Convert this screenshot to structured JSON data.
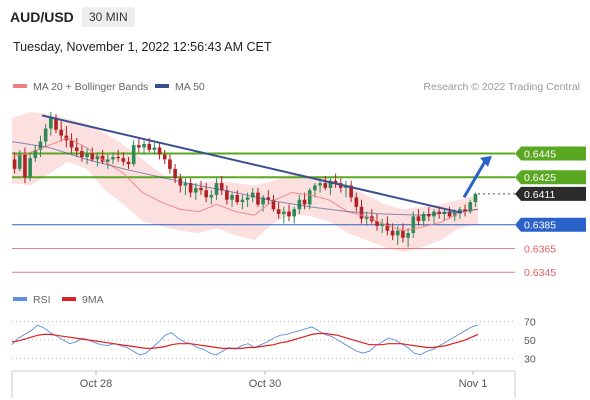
{
  "header": {
    "symbol": "AUD/USD",
    "timeframe": "30 MIN",
    "datetime": "Tuesday, November 1, 2022 12:56:43 AM CET"
  },
  "colors": {
    "candle_up": "#2e8b57",
    "candle_down": "#b22222",
    "bollinger_fill": "#fbd9d9",
    "ma20": "#f08080",
    "ma50": "#3a4f8f",
    "trendline": "#3a4f8f",
    "resistance": "#5aa822",
    "pivot": "#2a62c9",
    "support": "#e06060",
    "rsi": "#5b8de0",
    "rsi_ma": "#e02020",
    "arrow": "#2a62c9"
  },
  "chart_data": [
    {
      "type": "candlestick",
      "title": "",
      "legend": [
        {
          "name": "MA 20 + Bollinger Bands",
          "color": "#f08080"
        },
        {
          "name": "MA 50",
          "color": "#3a4f8f"
        }
      ],
      "legend_placement": "top-left",
      "copyright": "Research © 2022 Trading Central",
      "x_labels": [
        "Oct 28",
        "Oct 30",
        "Nov 1"
      ],
      "y_range": [
        0.633,
        0.649
      ],
      "levels": [
        {
          "value": 0.6445,
          "label": "0.6445",
          "kind": "resistance"
        },
        {
          "value": 0.6425,
          "label": "0.6425",
          "kind": "resistance"
        },
        {
          "value": 0.6411,
          "label": "0.6411",
          "kind": "last"
        },
        {
          "value": 0.6385,
          "label": "0.6385",
          "kind": "pivot"
        },
        {
          "value": 0.6365,
          "label": "0.6365",
          "kind": "support"
        },
        {
          "value": 0.6345,
          "label": "0.6345",
          "kind": "support"
        }
      ],
      "trendline": {
        "from": [
          0.0,
          0.6477
        ],
        "to": [
          0.965,
          0.6395
        ]
      },
      "projection_arrow": {
        "from": [
          0.97,
          0.6408
        ],
        "to": [
          1.03,
          0.6443
        ]
      },
      "ma50": [
        [
          0,
          0.6455
        ],
        [
          0.08,
          0.645
        ],
        [
          0.16,
          0.644
        ],
        [
          0.24,
          0.6432
        ],
        [
          0.32,
          0.6425
        ],
        [
          0.4,
          0.6418
        ],
        [
          0.48,
          0.6412
        ],
        [
          0.56,
          0.6405
        ],
        [
          0.64,
          0.64
        ],
        [
          0.72,
          0.6396
        ],
        [
          0.8,
          0.6394
        ],
        [
          0.88,
          0.6393
        ],
        [
          0.96,
          0.6396
        ],
        [
          1.0,
          0.6398
        ]
      ],
      "ma20": [
        [
          0,
          0.6442
        ],
        [
          0.04,
          0.6446
        ],
        [
          0.08,
          0.6452
        ],
        [
          0.12,
          0.6458
        ],
        [
          0.16,
          0.645
        ],
        [
          0.2,
          0.6438
        ],
        [
          0.24,
          0.6428
        ],
        [
          0.28,
          0.6412
        ],
        [
          0.32,
          0.6404
        ],
        [
          0.36,
          0.6398
        ],
        [
          0.4,
          0.6396
        ],
        [
          0.44,
          0.6402
        ],
        [
          0.48,
          0.6396
        ],
        [
          0.52,
          0.6393
        ],
        [
          0.56,
          0.6405
        ],
        [
          0.6,
          0.6412
        ],
        [
          0.64,
          0.641
        ],
        [
          0.68,
          0.6406
        ],
        [
          0.72,
          0.6396
        ],
        [
          0.76,
          0.6392
        ],
        [
          0.8,
          0.6385
        ],
        [
          0.84,
          0.638
        ],
        [
          0.88,
          0.6383
        ],
        [
          0.92,
          0.6387
        ],
        [
          0.96,
          0.6395
        ],
        [
          1.0,
          0.6398
        ]
      ],
      "bollinger_upper": [
        [
          0,
          0.6475
        ],
        [
          0.04,
          0.648
        ],
        [
          0.08,
          0.6478
        ],
        [
          0.12,
          0.6474
        ],
        [
          0.16,
          0.647
        ],
        [
          0.2,
          0.6462
        ],
        [
          0.24,
          0.6452
        ],
        [
          0.28,
          0.644
        ],
        [
          0.32,
          0.6428
        ],
        [
          0.36,
          0.642
        ],
        [
          0.4,
          0.642
        ],
        [
          0.44,
          0.6422
        ],
        [
          0.48,
          0.642
        ],
        [
          0.52,
          0.6418
        ],
        [
          0.56,
          0.6422
        ],
        [
          0.6,
          0.6428
        ],
        [
          0.64,
          0.6426
        ],
        [
          0.68,
          0.6424
        ],
        [
          0.72,
          0.6418
        ],
        [
          0.76,
          0.641
        ],
        [
          0.8,
          0.6402
        ],
        [
          0.84,
          0.6398
        ],
        [
          0.88,
          0.64
        ],
        [
          0.92,
          0.6402
        ],
        [
          0.96,
          0.6406
        ],
        [
          1.0,
          0.641
        ]
      ],
      "bollinger_lower": [
        [
          0,
          0.642
        ],
        [
          0.04,
          0.6418
        ],
        [
          0.08,
          0.6428
        ],
        [
          0.12,
          0.6438
        ],
        [
          0.16,
          0.6432
        ],
        [
          0.2,
          0.6414
        ],
        [
          0.24,
          0.6402
        ],
        [
          0.28,
          0.6388
        ],
        [
          0.32,
          0.6384
        ],
        [
          0.36,
          0.638
        ],
        [
          0.4,
          0.6378
        ],
        [
          0.44,
          0.6382
        ],
        [
          0.48,
          0.6376
        ],
        [
          0.52,
          0.6372
        ],
        [
          0.56,
          0.6386
        ],
        [
          0.6,
          0.6394
        ],
        [
          0.64,
          0.6392
        ],
        [
          0.68,
          0.6388
        ],
        [
          0.72,
          0.6378
        ],
        [
          0.76,
          0.6372
        ],
        [
          0.8,
          0.6366
        ],
        [
          0.84,
          0.6362
        ],
        [
          0.88,
          0.6366
        ],
        [
          0.92,
          0.6372
        ],
        [
          0.96,
          0.6382
        ],
        [
          1.0,
          0.6386
        ]
      ],
      "candles": [
        [
          0.644,
          0.6446,
          0.6428,
          0.6432
        ],
        [
          0.6432,
          0.6448,
          0.643,
          0.6444
        ],
        [
          0.6444,
          0.645,
          0.642,
          0.6425
        ],
        [
          0.6425,
          0.6445,
          0.6422,
          0.6441
        ],
        [
          0.6441,
          0.6452,
          0.6438,
          0.6448
        ],
        [
          0.6448,
          0.646,
          0.6442,
          0.6455
        ],
        [
          0.6455,
          0.647,
          0.645,
          0.6466
        ],
        [
          0.6466,
          0.648,
          0.646,
          0.6475
        ],
        [
          0.6475,
          0.6478,
          0.6462,
          0.6465
        ],
        [
          0.6465,
          0.6472,
          0.6455,
          0.646
        ],
        [
          0.646,
          0.6468,
          0.645,
          0.6456
        ],
        [
          0.6456,
          0.6462,
          0.6445,
          0.645
        ],
        [
          0.645,
          0.6458,
          0.6442,
          0.6447
        ],
        [
          0.6447,
          0.6452,
          0.6438,
          0.6442
        ],
        [
          0.6442,
          0.645,
          0.6436,
          0.6445
        ],
        [
          0.6445,
          0.645,
          0.6438,
          0.644
        ],
        [
          0.644,
          0.6446,
          0.6434,
          0.6443
        ],
        [
          0.6443,
          0.6448,
          0.6436,
          0.6438
        ],
        [
          0.6438,
          0.6444,
          0.6432,
          0.644
        ],
        [
          0.644,
          0.6446,
          0.6436,
          0.6442
        ],
        [
          0.6442,
          0.6448,
          0.6438,
          0.6441
        ],
        [
          0.6441,
          0.6446,
          0.6435,
          0.6438
        ],
        [
          0.6438,
          0.6442,
          0.6432,
          0.6436
        ],
        [
          0.6436,
          0.6456,
          0.6434,
          0.6452
        ],
        [
          0.6452,
          0.6458,
          0.6446,
          0.645
        ],
        [
          0.645,
          0.6456,
          0.6444,
          0.6453
        ],
        [
          0.6453,
          0.6458,
          0.6446,
          0.6448
        ],
        [
          0.6448,
          0.6454,
          0.6444,
          0.645
        ],
        [
          0.645,
          0.6454,
          0.644,
          0.6444
        ],
        [
          0.6444,
          0.6448,
          0.6436,
          0.644
        ],
        [
          0.644,
          0.6444,
          0.6428,
          0.6432
        ],
        [
          0.6432,
          0.6436,
          0.642,
          0.6424
        ],
        [
          0.6424,
          0.6428,
          0.6412,
          0.6418
        ],
        [
          0.6418,
          0.6424,
          0.641,
          0.642
        ],
        [
          0.642,
          0.6424,
          0.6408,
          0.6412
        ],
        [
          0.6412,
          0.642,
          0.6406,
          0.6416
        ],
        [
          0.6416,
          0.6422,
          0.641,
          0.6414
        ],
        [
          0.6414,
          0.642,
          0.6404,
          0.6408
        ],
        [
          0.6408,
          0.6414,
          0.6402,
          0.641
        ],
        [
          0.641,
          0.6424,
          0.6406,
          0.642
        ],
        [
          0.642,
          0.6426,
          0.641,
          0.6414
        ],
        [
          0.6414,
          0.6418,
          0.6402,
          0.6406
        ],
        [
          0.6406,
          0.6412,
          0.64,
          0.641
        ],
        [
          0.641,
          0.6414,
          0.6402,
          0.6404
        ],
        [
          0.6404,
          0.641,
          0.6398,
          0.6406
        ],
        [
          0.6406,
          0.6412,
          0.64,
          0.6408
        ],
        [
          0.6408,
          0.6416,
          0.6404,
          0.6412
        ],
        [
          0.6412,
          0.6416,
          0.64,
          0.6402
        ],
        [
          0.6402,
          0.641,
          0.6396,
          0.6408
        ],
        [
          0.6408,
          0.6414,
          0.6402,
          0.6406
        ],
        [
          0.6406,
          0.641,
          0.6396,
          0.6398
        ],
        [
          0.6398,
          0.6404,
          0.639,
          0.6394
        ],
        [
          0.6394,
          0.64,
          0.6386,
          0.6396
        ],
        [
          0.6396,
          0.6402,
          0.6388,
          0.6392
        ],
        [
          0.6392,
          0.64,
          0.6386,
          0.6398
        ],
        [
          0.6398,
          0.641,
          0.6394,
          0.6406
        ],
        [
          0.6406,
          0.6412,
          0.6398,
          0.6402
        ],
        [
          0.6402,
          0.6416,
          0.6398,
          0.6414
        ],
        [
          0.6414,
          0.642,
          0.6408,
          0.6418
        ],
        [
          0.6418,
          0.6424,
          0.6412,
          0.642
        ],
        [
          0.642,
          0.6426,
          0.6414,
          0.6416
        ],
        [
          0.6416,
          0.6424,
          0.641,
          0.6422
        ],
        [
          0.6422,
          0.6428,
          0.6416,
          0.642
        ],
        [
          0.642,
          0.6424,
          0.6412,
          0.6416
        ],
        [
          0.6416,
          0.6422,
          0.6408,
          0.6418
        ],
        [
          0.6418,
          0.6422,
          0.6404,
          0.6408
        ],
        [
          0.6408,
          0.6412,
          0.6396,
          0.64
        ],
        [
          0.64,
          0.6406,
          0.6386,
          0.639
        ],
        [
          0.639,
          0.6396,
          0.6384,
          0.6392
        ],
        [
          0.6392,
          0.6398,
          0.6386,
          0.6388
        ],
        [
          0.6388,
          0.6394,
          0.638,
          0.6384
        ],
        [
          0.6384,
          0.639,
          0.6378,
          0.6386
        ],
        [
          0.6386,
          0.6392,
          0.6376,
          0.638
        ],
        [
          0.638,
          0.6386,
          0.6372,
          0.6376
        ],
        [
          0.6376,
          0.6384,
          0.6368,
          0.638
        ],
        [
          0.638,
          0.6386,
          0.637,
          0.6374
        ],
        [
          0.6374,
          0.6382,
          0.6366,
          0.6378
        ],
        [
          0.6378,
          0.6396,
          0.6374,
          0.6392
        ],
        [
          0.6392,
          0.6398,
          0.6384,
          0.6388
        ],
        [
          0.6388,
          0.6396,
          0.6384,
          0.6394
        ],
        [
          0.6394,
          0.64,
          0.6388,
          0.6392
        ],
        [
          0.6392,
          0.6398,
          0.6386,
          0.6396
        ],
        [
          0.6396,
          0.64,
          0.639,
          0.6394
        ],
        [
          0.6394,
          0.6398,
          0.6388,
          0.6396
        ],
        [
          0.6396,
          0.64,
          0.639,
          0.6392
        ],
        [
          0.6392,
          0.6398,
          0.6388,
          0.6395
        ],
        [
          0.6395,
          0.64,
          0.639,
          0.6398
        ],
        [
          0.6398,
          0.6402,
          0.6392,
          0.6396
        ],
        [
          0.6396,
          0.6406,
          0.6394,
          0.6404
        ],
        [
          0.6404,
          0.6412,
          0.64,
          0.6411
        ]
      ]
    },
    {
      "type": "line",
      "title": "",
      "legend": [
        {
          "name": "RSI",
          "color": "#5b8de0"
        },
        {
          "name": "9MA",
          "color": "#e02020"
        }
      ],
      "y_ticks": [
        70,
        50,
        30
      ],
      "y_range": [
        20,
        80
      ],
      "series": [
        {
          "name": "RSI",
          "values": [
            45,
            52,
            56,
            60,
            66,
            63,
            58,
            54,
            50,
            46,
            48,
            52,
            50,
            47,
            45,
            44,
            46,
            44,
            42,
            38,
            34,
            36,
            42,
            48,
            55,
            58,
            52,
            48,
            46,
            42,
            40,
            36,
            34,
            38,
            42,
            40,
            44,
            46,
            42,
            45,
            48,
            52,
            55,
            56,
            58,
            60,
            62,
            64,
            60,
            56,
            54,
            50,
            46,
            42,
            38,
            36,
            38,
            44,
            48,
            52,
            50,
            46,
            42,
            36,
            34,
            38,
            40,
            44,
            48,
            52,
            56,
            60,
            64,
            66
          ]
        },
        {
          "name": "9MA",
          "values": [
            48,
            49,
            51,
            53,
            55,
            56,
            56,
            55,
            54,
            53,
            52,
            51,
            50,
            49,
            48,
            47,
            46,
            45,
            44,
            43,
            42,
            41,
            41,
            42,
            43,
            45,
            46,
            46,
            46,
            45,
            44,
            43,
            42,
            41,
            41,
            41,
            41,
            42,
            42,
            43,
            44,
            45,
            47,
            48,
            50,
            52,
            54,
            56,
            57,
            57,
            56,
            55,
            53,
            51,
            49,
            47,
            45,
            45,
            45,
            46,
            46,
            46,
            45,
            44,
            43,
            42,
            42,
            43,
            44,
            46,
            48,
            50,
            53,
            56
          ]
        }
      ]
    }
  ]
}
